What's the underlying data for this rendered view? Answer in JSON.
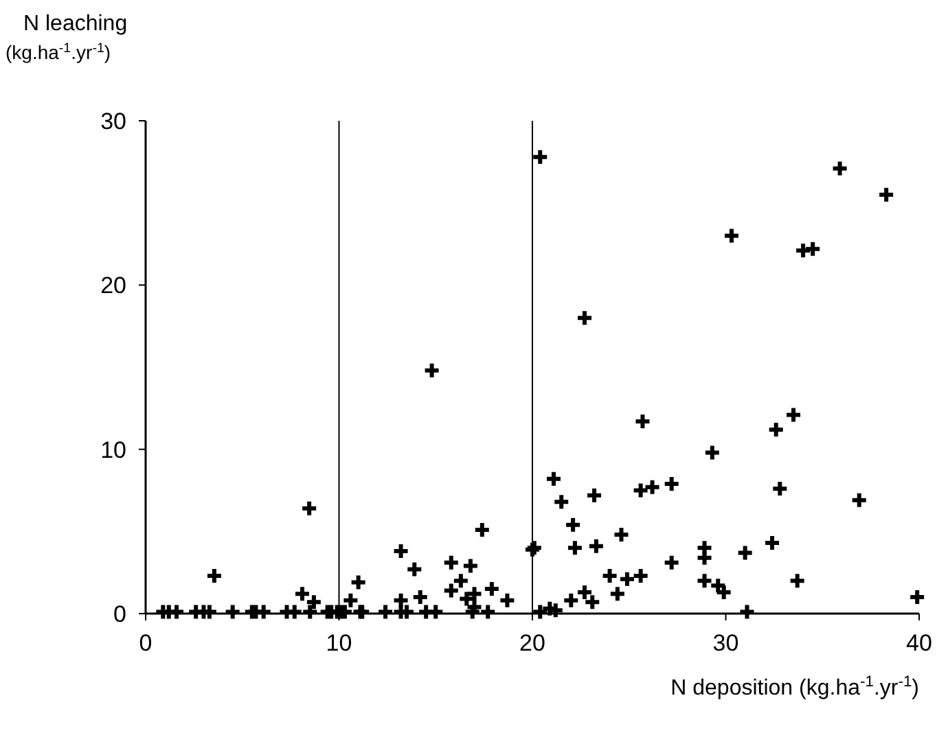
{
  "chart_data": {
    "type": "scatter",
    "xlabel": "N deposition (kg.ha$^{-1}$.yr$^{-1}$)",
    "ylabel": "N leaching\n(kg.ha$^{-1}$.yr$^{-1}$)",
    "xlim": [
      0,
      40
    ],
    "xticks": [
      0,
      10,
      20,
      30,
      40
    ],
    "ylim": [
      0,
      30
    ],
    "yticks": [
      0,
      10,
      20,
      30
    ],
    "marker": "cross",
    "ref_lines": [
      {
        "axis": "x",
        "value": 10,
        "color": "#000000"
      },
      {
        "axis": "x",
        "value": 20,
        "color": "#000000"
      }
    ],
    "series": [
      {
        "color": "#000000",
        "x": [
          0.9,
          1.2,
          1.6,
          2.6,
          3.0,
          3.3,
          4.5,
          5.5,
          5.7,
          6.1,
          7.3,
          7.7,
          8.5,
          9.4,
          9.6,
          9.9,
          10.1,
          10.3,
          11.1,
          11.2,
          12.4,
          13.2,
          13.5,
          14.5,
          15.0,
          16.9,
          17.7,
          8.46,
          14.8,
          3.55,
          11.0,
          13.2,
          13.9,
          15.8,
          16.8,
          16.3,
          15.8,
          17.4,
          17.9,
          18.7,
          16.6,
          17.0,
          17.0,
          8.1,
          8.7,
          13.2,
          14.2,
          10.6,
          20.0,
          21.1,
          21.5,
          22.1,
          23.2,
          20.1,
          22.2,
          23.3,
          24.6,
          25.6,
          26.2,
          27.2,
          32.8,
          36.9,
          28.9,
          28.9,
          27.2,
          31.0,
          32.4,
          33.7,
          24.0,
          24.9,
          25.6,
          24.4,
          28.9,
          29.6,
          29.9,
          22.7,
          23.1,
          22.0,
          39.9,
          31.1,
          20.4,
          20.9,
          21.2,
          29.3,
          20.4,
          22.7,
          30.3,
          34.0,
          34.5,
          35.9,
          38.3,
          25.7,
          32.6,
          33.5
        ],
        "values": [
          0.1,
          0.1,
          0.1,
          0.1,
          0.1,
          0.1,
          0.1,
          0.1,
          0.1,
          0.1,
          0.1,
          0.1,
          0.1,
          0.1,
          0.1,
          0.1,
          0.1,
          0.1,
          0.1,
          0.1,
          0.1,
          0.1,
          0.1,
          0.1,
          0.1,
          0.1,
          0.1,
          6.4,
          14.8,
          2.3,
          1.9,
          3.8,
          2.7,
          3.1,
          2.9,
          2.0,
          1.4,
          5.1,
          1.5,
          0.8,
          0.9,
          1.2,
          0.4,
          1.2,
          0.7,
          0.8,
          1.0,
          0.8,
          3.9,
          8.2,
          6.8,
          5.4,
          7.2,
          4.0,
          4.0,
          4.1,
          4.8,
          7.5,
          7.7,
          7.9,
          7.6,
          6.9,
          4.0,
          3.4,
          3.1,
          3.7,
          4.3,
          2.0,
          2.3,
          2.1,
          2.3,
          1.2,
          2.0,
          1.7,
          1.3,
          1.3,
          0.7,
          0.8,
          1.0,
          0.1,
          0.1,
          0.3,
          0.2,
          9.8,
          27.8,
          18.0,
          23.0,
          22.1,
          22.2,
          27.1,
          25.5,
          11.7,
          11.2,
          12.1
        ]
      }
    ]
  }
}
